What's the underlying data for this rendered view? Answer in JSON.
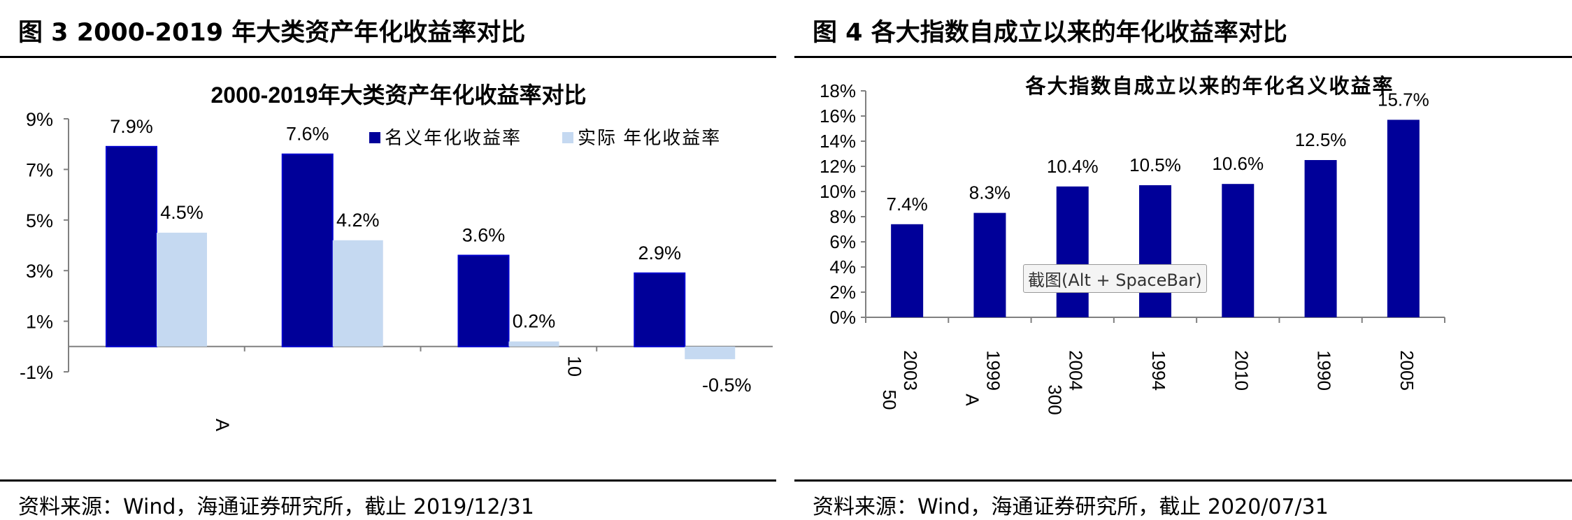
{
  "left_figure": {
    "caption": "图 3  2000-2019 年大类资产年化收益率对比",
    "source": "资料来源：Wind，海通证券研究所，截止 2019/12/31",
    "chart_data": {
      "type": "bar",
      "title": "2000-2019年大类资产年化收益率对比",
      "xlabel": "",
      "ylabel": "",
      "ylim": [
        -1,
        9
      ],
      "y_ticks": [
        "9%",
        "7%",
        "5%",
        "3%",
        "1%",
        "-1%"
      ],
      "categories": [
        "A",
        "",
        "10",
        ""
      ],
      "series": [
        {
          "name": "名义年化收益率",
          "color": "#000099",
          "values": [
            7.9,
            7.6,
            3.6,
            2.9
          ],
          "labels": [
            "7.9%",
            "7.6%",
            "3.6%",
            "2.9%"
          ]
        },
        {
          "name": "实际 年化收益率",
          "color": "#C5D9F1",
          "values": [
            4.5,
            4.2,
            0.2,
            -0.5
          ],
          "labels": [
            "4.5%",
            "4.2%",
            "0.2%",
            "-0.5%"
          ]
        }
      ],
      "legend": "top-right",
      "grid": false
    }
  },
  "right_figure": {
    "caption": "图 4  各大指数自成立以来的年化收益率对比",
    "source": "资料来源：Wind，海通证券研究所，截止 2020/07/31",
    "tooltip": "截图(Alt + SpaceBar)",
    "chart_data": {
      "type": "bar",
      "title": "各大指数自成立以来的年化名义收益率",
      "xlabel": "",
      "ylabel": "",
      "ylim": [
        0,
        18
      ],
      "y_ticks": [
        "18%",
        "16%",
        "14%",
        "12%",
        "10%",
        "8%",
        "6%",
        "4%",
        "2%",
        "0%"
      ],
      "categories": [
        [
          "2003",
          "50"
        ],
        [
          "1999",
          "A"
        ],
        [
          "2004",
          "300"
        ],
        [
          "1994"
        ],
        [
          "2010"
        ],
        [
          "1990"
        ],
        [
          "2005"
        ]
      ],
      "series": [
        {
          "name": "",
          "color": "#000099",
          "values": [
            7.4,
            8.3,
            10.4,
            10.5,
            10.6,
            12.5,
            15.7
          ],
          "labels": [
            "7.4%",
            "8.3%",
            "10.4%",
            "10.5%",
            "10.6%",
            "12.5%",
            "15.7%"
          ]
        }
      ],
      "legend": "none",
      "grid": false
    }
  }
}
